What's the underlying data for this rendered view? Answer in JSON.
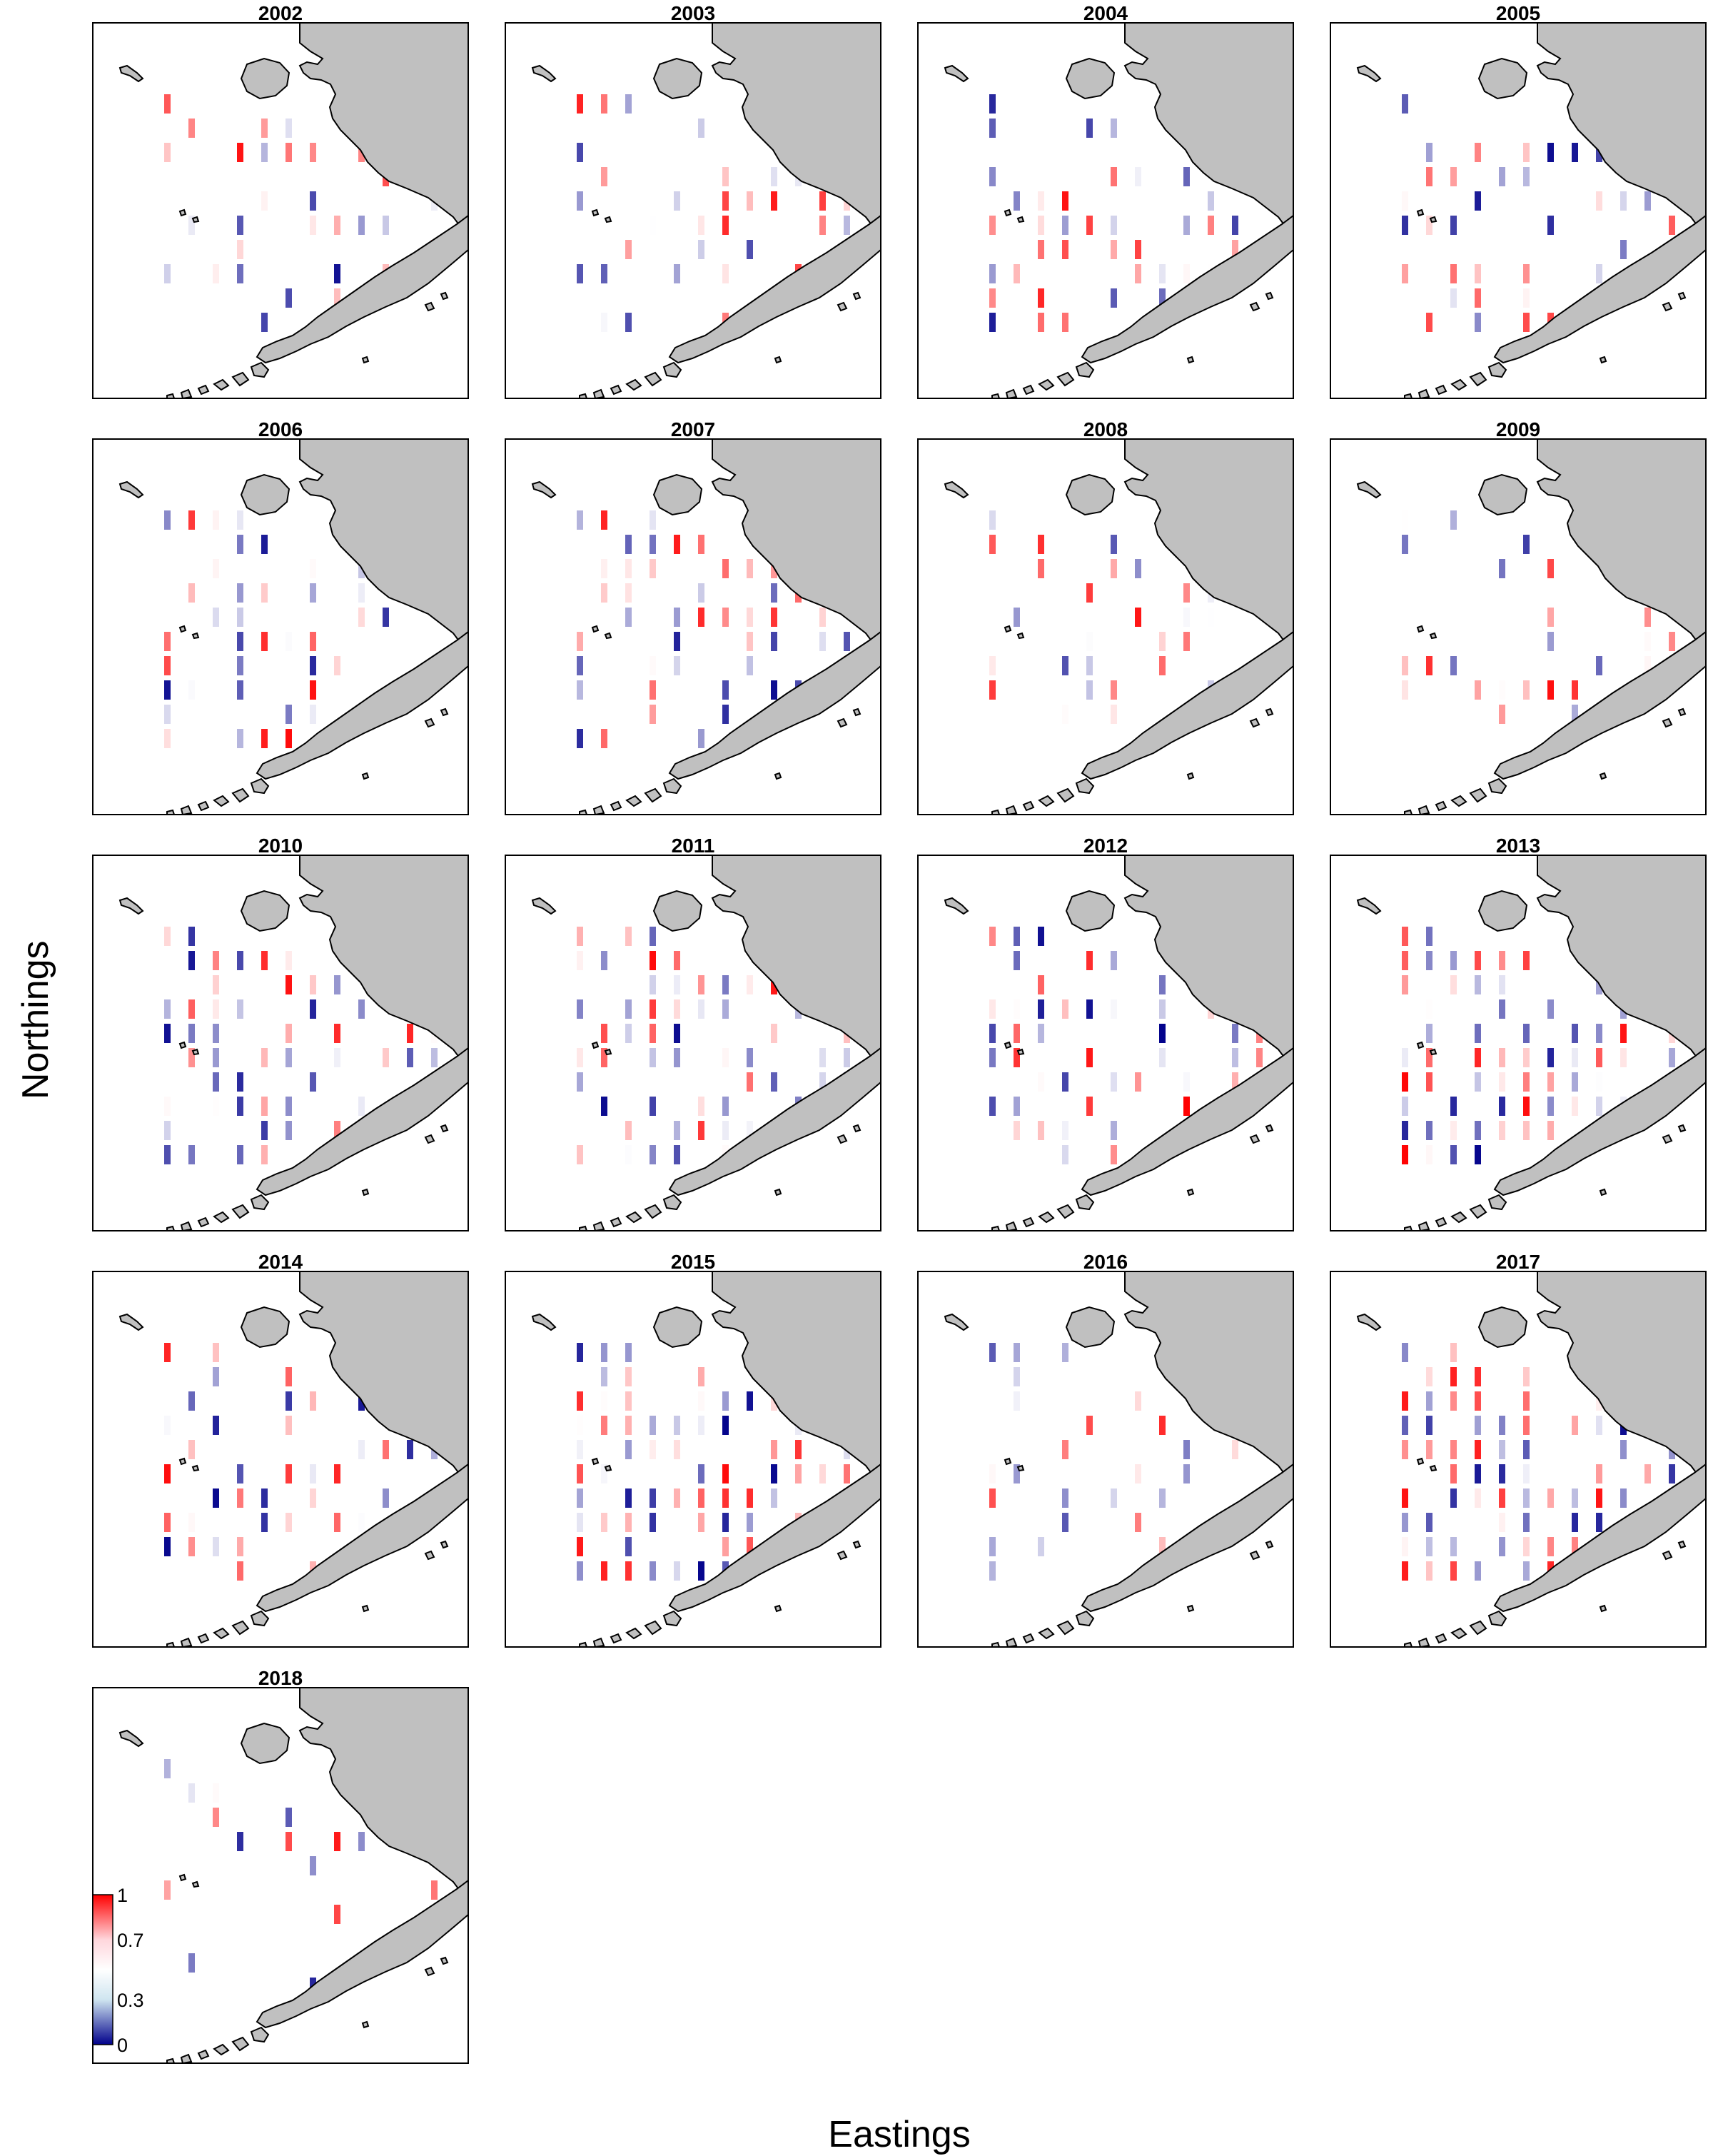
{
  "figure": {
    "xlabel": "Eastings",
    "ylabel": "Northings"
  },
  "colors": {
    "land": "#c0c0c0",
    "coast": "#000000",
    "low": "#00008b",
    "mid": "#ffffff",
    "high": "#ff0000"
  },
  "legend": {
    "ticks": [
      {
        "value": 1,
        "label": "1"
      },
      {
        "value": 0.7,
        "label": "0.7"
      },
      {
        "value": 0.3,
        "label": "0.3"
      },
      {
        "value": 0,
        "label": "0"
      }
    ]
  },
  "chart_data": {
    "type": "heatmap",
    "value_range": [
      0,
      1
    ],
    "panels": [
      {
        "title": "2002",
        "density": 0.3,
        "seed": 2002
      },
      {
        "title": "2003",
        "density": 0.4,
        "seed": 2003
      },
      {
        "title": "2004",
        "density": 0.45,
        "seed": 2004
      },
      {
        "title": "2005",
        "density": 0.45,
        "seed": 2005
      },
      {
        "title": "2006",
        "density": 0.5,
        "seed": 2006
      },
      {
        "title": "2007",
        "density": 0.5,
        "seed": 2007
      },
      {
        "title": "2008",
        "density": 0.25,
        "seed": 2008
      },
      {
        "title": "2009",
        "density": 0.3,
        "seed": 2009
      },
      {
        "title": "2010",
        "density": 0.5,
        "seed": 2010
      },
      {
        "title": "2011",
        "density": 0.5,
        "seed": 2011
      },
      {
        "title": "2012",
        "density": 0.5,
        "seed": 2012
      },
      {
        "title": "2013",
        "density": 0.65,
        "seed": 2013
      },
      {
        "title": "2014",
        "density": 0.45,
        "seed": 2014
      },
      {
        "title": "2015",
        "density": 0.65,
        "seed": 2015
      },
      {
        "title": "2016",
        "density": 0.25,
        "seed": 2016
      },
      {
        "title": "2017",
        "density": 0.65,
        "seed": 2017
      },
      {
        "title": "2018",
        "density": 0.18,
        "seed": 2018
      }
    ]
  }
}
